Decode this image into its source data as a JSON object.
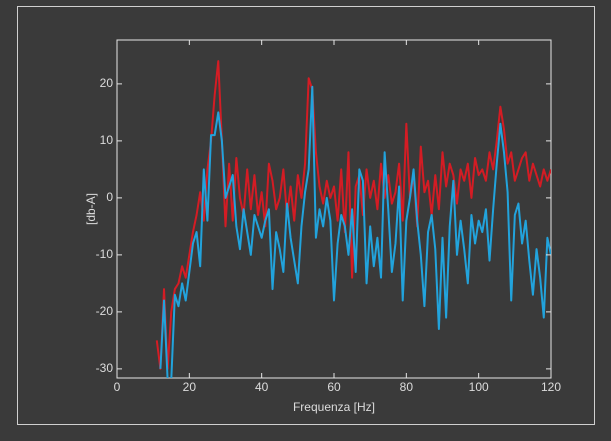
{
  "chart_data": {
    "type": "line",
    "x_label": "Frequenza [Hz]",
    "y_label": "[db-A]",
    "x": [
      11,
      12,
      13,
      14,
      15,
      16,
      17,
      18,
      19,
      20,
      21,
      22,
      23,
      24,
      25,
      26,
      27,
      28,
      29,
      30,
      31,
      32,
      33,
      34,
      35,
      36,
      37,
      38,
      39,
      40,
      41,
      42,
      43,
      44,
      45,
      46,
      47,
      48,
      49,
      50,
      51,
      52,
      53,
      54,
      55,
      56,
      57,
      58,
      59,
      60,
      61,
      62,
      63,
      64,
      65,
      66,
      67,
      68,
      69,
      70,
      71,
      72,
      73,
      74,
      75,
      76,
      77,
      78,
      79,
      80,
      81,
      82,
      83,
      84,
      85,
      86,
      87,
      88,
      89,
      90,
      91,
      92,
      93,
      94,
      95,
      96,
      97,
      98,
      99,
      100,
      101,
      102,
      103,
      104,
      105,
      106,
      107,
      108,
      109,
      110,
      111,
      112,
      113,
      114,
      115,
      116,
      117,
      118,
      119,
      120
    ],
    "series": [
      {
        "name": "red",
        "color": "#d41c24",
        "values": [
          -25,
          -30,
          -16,
          -30,
          -20,
          -16,
          -15,
          -12,
          -14,
          -10,
          -6,
          -3,
          1,
          -4,
          5,
          10,
          18,
          24,
          10,
          -5,
          6,
          -4,
          7,
          0,
          -3,
          5,
          -2,
          4,
          -3,
          1,
          -5,
          6,
          3,
          -2,
          0,
          5,
          -3,
          2,
          -4,
          4,
          0,
          6,
          21,
          19,
          8,
          2,
          -1,
          3,
          0,
          2,
          -4,
          5,
          -6,
          8,
          -14,
          2,
          4,
          -3,
          5,
          0,
          3,
          -2,
          6,
          0,
          4,
          -1,
          1,
          6,
          -4,
          13,
          0,
          4,
          -5,
          9,
          1,
          3,
          -3,
          4,
          -2,
          8,
          2,
          6,
          4,
          -1,
          5,
          3,
          6,
          0,
          7,
          4,
          5,
          3,
          8,
          5,
          10,
          16,
          12,
          6,
          8,
          3,
          5,
          7,
          8,
          3,
          6,
          4,
          2,
          5,
          3,
          5
        ]
      },
      {
        "name": "blue",
        "color": "#22a3dc",
        "values": [
          null,
          -30,
          -18,
          -32,
          -32,
          -17,
          -19,
          -15,
          -18,
          -13,
          -8,
          -6,
          -12,
          5,
          -4,
          11,
          11,
          15,
          10,
          0,
          2,
          4,
          -5,
          -9,
          -2,
          -6,
          -10,
          -3,
          -5,
          -7,
          -4,
          -2,
          -16,
          -6,
          -9,
          -13,
          -1,
          -7,
          -11,
          -15,
          -5,
          1,
          5,
          19.5,
          -7,
          -2,
          -5,
          0,
          -4,
          -18,
          -8,
          -3,
          -5,
          -10,
          -2,
          -13,
          5,
          3,
          -15,
          -5,
          -12,
          -7,
          -14,
          8,
          -2,
          -13,
          -8,
          2,
          -18,
          -4,
          0,
          5,
          -4,
          -10,
          -19,
          -6,
          -3,
          -9,
          -23,
          -7,
          -21,
          -5,
          3,
          -10,
          -4,
          -9,
          -15,
          -3,
          -8,
          -4,
          -6,
          -2,
          -11,
          -2,
          6,
          13,
          8,
          1,
          -18,
          -3,
          -1,
          -8,
          -4,
          -11,
          -17,
          -9,
          -14,
          -21,
          -7,
          -10
        ]
      }
    ],
    "xlim": [
      0,
      120
    ],
    "ylim": [
      -31.6,
      27.7
    ],
    "xticks": [
      0,
      20,
      40,
      60,
      80,
      100,
      120
    ],
    "yticks": [
      -30,
      -20,
      -10,
      0,
      10,
      20
    ]
  }
}
